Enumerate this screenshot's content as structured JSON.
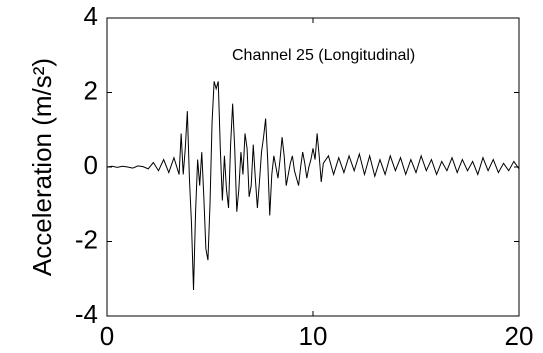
{
  "chart_data": {
    "type": "line",
    "ylabel": "Acceleration (m/s²)",
    "annotation": "Channel 25 (Longitudinal)",
    "xlim": [
      0,
      20
    ],
    "xticks": [
      0,
      10,
      20
    ],
    "ylim": [
      -4,
      4
    ],
    "yticks": [
      -4,
      -2,
      0,
      2,
      4
    ],
    "grid": false,
    "series": [
      {
        "color": "#000000",
        "x": [
          0,
          0.25,
          0.5,
          0.75,
          1,
          1.25,
          1.5,
          1.75,
          2,
          2.25,
          2.5,
          2.75,
          3,
          3.25,
          3.5,
          3.6,
          3.7,
          3.8,
          3.9,
          4.0,
          4.1,
          4.2,
          4.3,
          4.4,
          4.5,
          4.6,
          4.7,
          4.8,
          4.9,
          5.0,
          5.1,
          5.2,
          5.3,
          5.4,
          5.5,
          5.6,
          5.7,
          5.8,
          5.9,
          6.0,
          6.1,
          6.2,
          6.3,
          6.4,
          6.5,
          6.6,
          6.7,
          6.8,
          6.9,
          7.0,
          7.1,
          7.2,
          7.3,
          7.4,
          7.5,
          7.6,
          7.7,
          7.8,
          7.9,
          8.0,
          8.1,
          8.2,
          8.3,
          8.4,
          8.5,
          8.6,
          8.7,
          8.8,
          8.9,
          9.0,
          9.1,
          9.2,
          9.3,
          9.4,
          9.5,
          9.6,
          9.7,
          9.8,
          9.9,
          10.0,
          10.1,
          10.2,
          10.3,
          10.4,
          10.5,
          10.75,
          11,
          11.25,
          11.5,
          11.75,
          12,
          12.25,
          12.5,
          12.75,
          13,
          13.25,
          13.5,
          13.75,
          14,
          14.25,
          14.5,
          14.75,
          15,
          15.25,
          15.5,
          15.75,
          16,
          16.25,
          16.5,
          16.75,
          17,
          17.25,
          17.5,
          17.75,
          18,
          18.25,
          18.5,
          18.75,
          19,
          19.25,
          19.5,
          19.75,
          20
        ],
        "values": [
          0,
          0.02,
          -0.01,
          0.02,
          0,
          -0.03,
          0.03,
          0.01,
          -0.05,
          0.12,
          -0.1,
          0.2,
          -0.15,
          0.25,
          -0.2,
          0.9,
          -0.2,
          0.5,
          1.5,
          -0.3,
          -1.5,
          -3.3,
          -1.2,
          0.2,
          -0.5,
          0.4,
          -0.8,
          -2.2,
          -2.5,
          -1.0,
          1.2,
          2.3,
          2.1,
          2.3,
          0.5,
          -0.9,
          0.3,
          -0.6,
          -1.1,
          0.6,
          1.7,
          0.5,
          -1.2,
          -0.6,
          0.4,
          -0.2,
          0.9,
          0.5,
          -0.8,
          -0.5,
          0.6,
          -0.3,
          -1.1,
          -0.4,
          0.4,
          0.8,
          1.3,
          0.2,
          -1.3,
          -0.2,
          0.3,
          0.0,
          -0.3,
          0.2,
          0.8,
          0.3,
          -0.5,
          -0.2,
          0.1,
          0.3,
          -0.1,
          -0.3,
          -0.5,
          0.0,
          0.4,
          0.1,
          -0.3,
          0.0,
          0.2,
          0.5,
          0.2,
          0.9,
          0.3,
          -0.4,
          0.1,
          0.3,
          -0.2,
          0.25,
          -0.15,
          0.3,
          -0.1,
          0.35,
          -0.2,
          0.3,
          -0.25,
          0.2,
          -0.2,
          0.3,
          -0.1,
          0.25,
          -0.2,
          0.2,
          -0.15,
          0.3,
          -0.1,
          0.2,
          -0.2,
          0.15,
          -0.1,
          0.25,
          -0.15,
          0.2,
          -0.1,
          0.15,
          -0.2,
          0.25,
          -0.1,
          0.2,
          -0.15,
          0.1,
          -0.1,
          0.15,
          -0.05
        ]
      }
    ]
  }
}
